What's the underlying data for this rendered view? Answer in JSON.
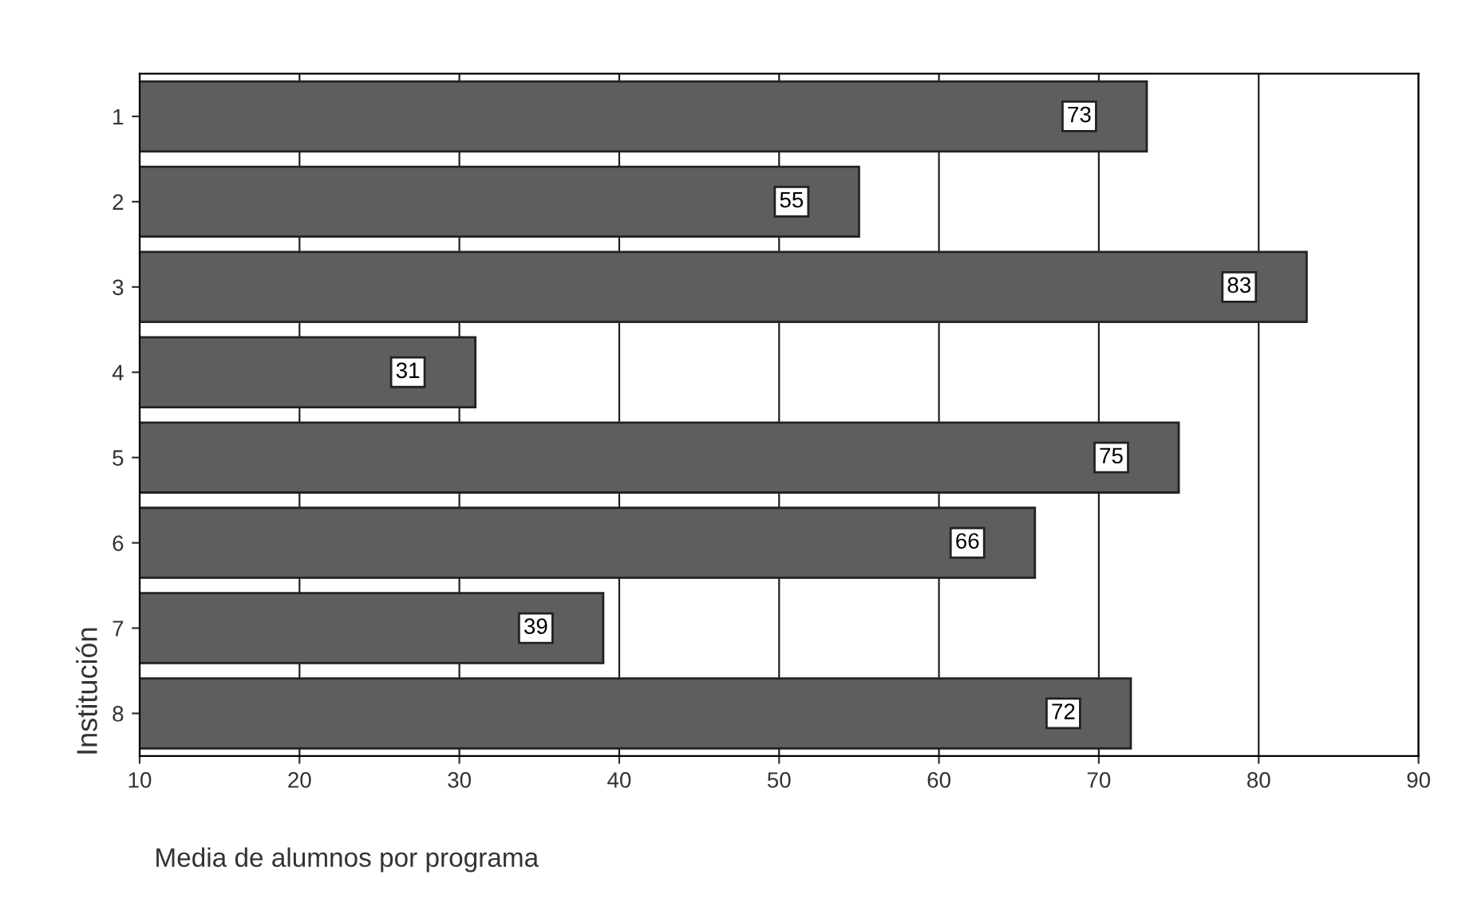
{
  "chart_data": {
    "type": "bar",
    "orientation": "horizontal",
    "xlabel": "Media de alumnos por programa",
    "ylabel": "Institución",
    "categories": [
      "1",
      "2",
      "3",
      "4",
      "5",
      "6",
      "7",
      "8"
    ],
    "values": [
      73,
      55,
      83,
      31,
      75,
      66,
      39,
      72
    ],
    "color": "#5e5e5e",
    "xlim": [
      10,
      90
    ],
    "xticks": [
      10,
      20,
      30,
      40,
      50,
      60,
      70,
      80,
      90
    ],
    "grid": "x",
    "data_labels": true
  }
}
